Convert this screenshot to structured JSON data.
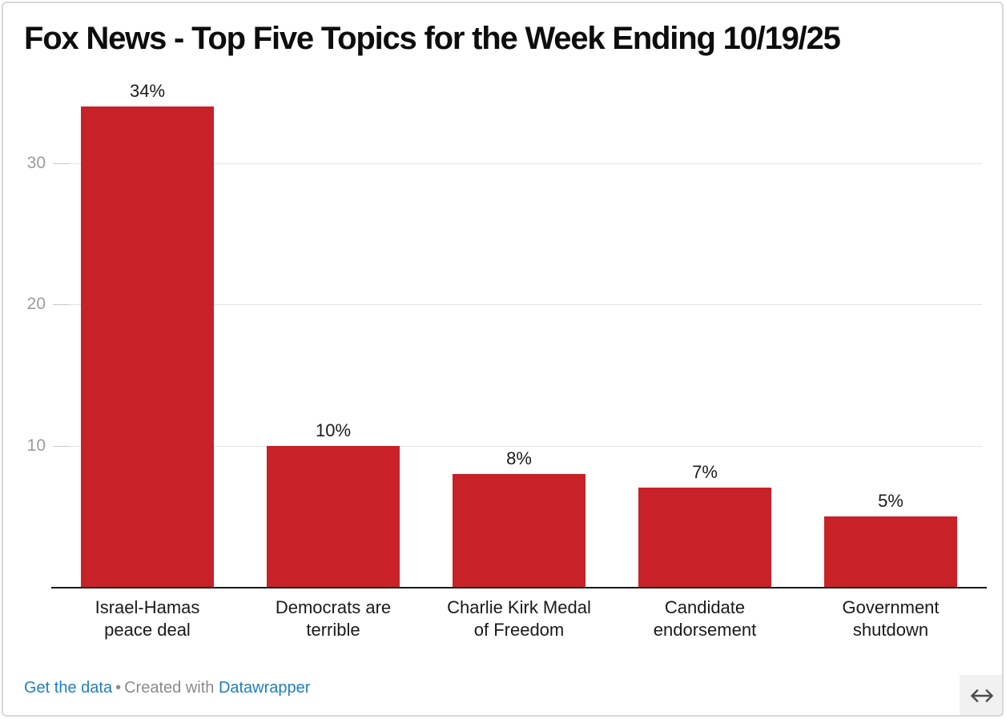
{
  "title": "Fox News - Top Five Topics for the Week Ending 10/19/25",
  "chart_data": {
    "type": "bar",
    "title": "Fox News - Top Five Topics for the Week Ending 10/19/25",
    "categories": [
      "Israel-Hamas peace deal",
      "Democrats are terrible",
      "Charlie Kirk Medal of Freedom",
      "Candidate endorsement",
      "Government shutdown"
    ],
    "category_lines": [
      [
        "Israel-Hamas",
        "peace deal"
      ],
      [
        "Democrats are",
        "terrible"
      ],
      [
        "Charlie Kirk Medal",
        "of Freedom"
      ],
      [
        "Candidate",
        "endorsement"
      ],
      [
        "Government",
        "shutdown"
      ]
    ],
    "values": [
      34,
      10,
      8,
      7,
      5
    ],
    "value_labels": [
      "34%",
      "10%",
      "8%",
      "7%",
      "5%"
    ],
    "unit": "%",
    "xlabel": "",
    "ylabel": "",
    "y_ticks": [
      10,
      20,
      30
    ],
    "ylim": [
      0,
      36
    ],
    "grid": "horizontal",
    "legend": false,
    "bar_color": "#c92128"
  },
  "footer": {
    "get_data_label": "Get the data",
    "separator": "•",
    "created_with": "Created with",
    "tool_name": "Datawrapper"
  },
  "controls": {
    "expand_icon": "left-right-arrow"
  },
  "colors": {
    "bar": "#c92128",
    "link": "#1d80c2",
    "muted": "#8b8b8b",
    "axis_tick": "#9b9b9b",
    "gridline": "#e4e4e4",
    "gridline_dark": "#c9c9c9",
    "baseline": "#191919",
    "title": "#0d0d0d",
    "label": "#1a1a1a",
    "card_border": "#d8d8d8",
    "expand_bg": "#f1f1f1",
    "expand_fg": "#4c4c4c"
  }
}
